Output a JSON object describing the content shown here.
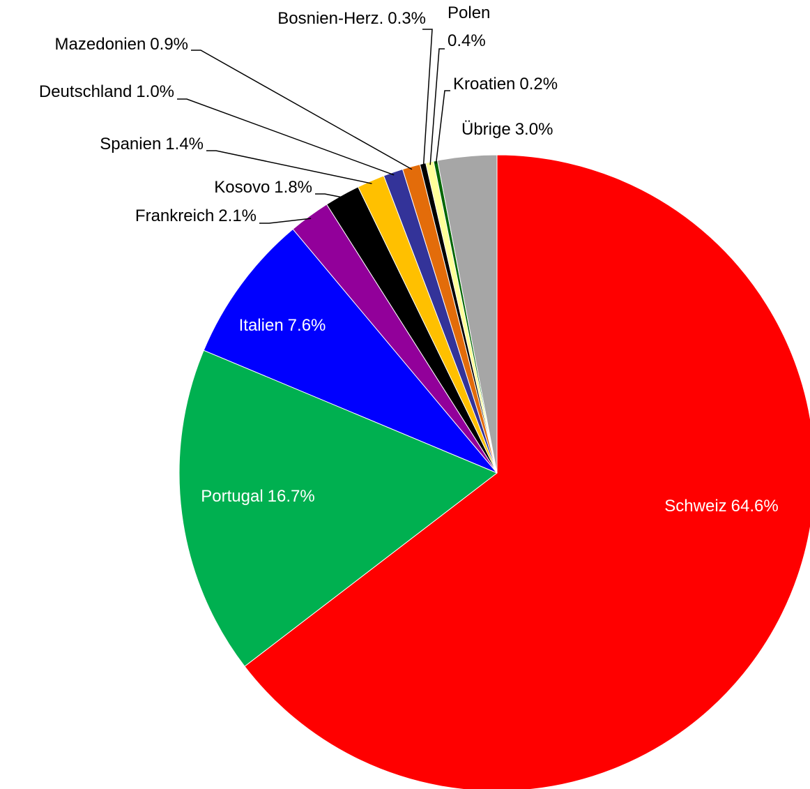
{
  "chart_data": {
    "type": "pie",
    "categories": [
      "Schweiz",
      "Portugal",
      "Italien",
      "Frankreich",
      "Kosovo",
      "Spanien",
      "Deutschland",
      "Mazedonien",
      "Bosnien-Herz.",
      "Polen",
      "Kroatien",
      "Übrige"
    ],
    "values": [
      64.6,
      16.7,
      7.6,
      2.1,
      1.8,
      1.4,
      1.0,
      0.9,
      0.3,
      0.4,
      0.2,
      3.0
    ],
    "value_labels": [
      "64.6%",
      "16.7%",
      "7.6%",
      "2.1%",
      "1.8%",
      "1.4%",
      "1.0%",
      "0.9%",
      "0.3%",
      "0.4%",
      "0.2%",
      "3.0%"
    ],
    "colors": [
      "#ff0000",
      "#00b050",
      "#0000ff",
      "#92009a",
      "#000000",
      "#ffc000",
      "#333399",
      "#e36c0a",
      "#000000",
      "#ffff99",
      "#006600",
      "#a6a6a6"
    ]
  }
}
